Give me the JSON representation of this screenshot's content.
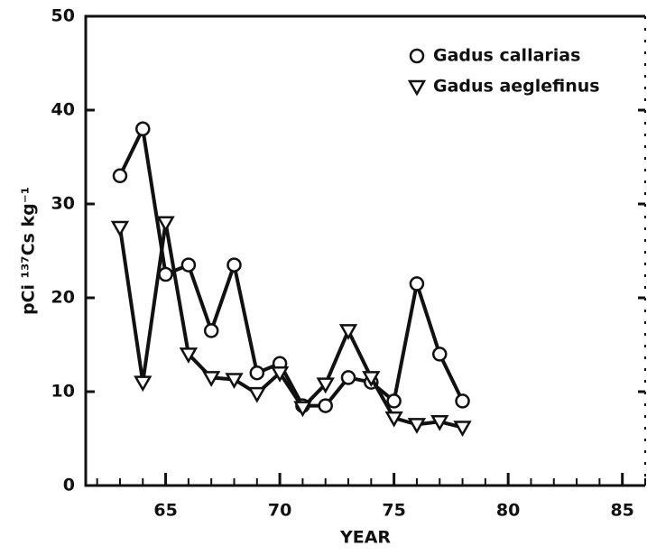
{
  "chart_data": {
    "type": "line",
    "x_label": "YEAR",
    "y_label": "pCi ¹³⁷Cs kg⁻¹",
    "x": [
      63,
      64,
      65,
      66,
      67,
      68,
      69,
      70,
      71,
      72,
      73,
      74,
      75,
      76,
      77,
      78
    ],
    "series": [
      {
        "name": "Gadus callarias",
        "marker": "circle",
        "color": "#111111",
        "values": [
          33,
          38,
          22.5,
          23.5,
          16.5,
          23.5,
          12,
          13,
          8.5,
          8.5,
          11.5,
          11,
          9,
          21.5,
          14,
          9
        ]
      },
      {
        "name": "Gadus aeglefinus",
        "marker": "triangle",
        "color": "#111111",
        "values": [
          27.5,
          11,
          28,
          14,
          11.5,
          11.3,
          9.8,
          12,
          8.3,
          10.8,
          16.5,
          11.5,
          7.2,
          6.5,
          6.8,
          6.2
        ]
      }
    ],
    "xlim": [
      61.5,
      86
    ],
    "xticks": [
      65,
      70,
      75,
      80,
      85
    ],
    "ylim": [
      0,
      50
    ],
    "yticks": [
      0,
      10,
      20,
      30,
      40,
      50
    ],
    "legend": "upper right"
  }
}
